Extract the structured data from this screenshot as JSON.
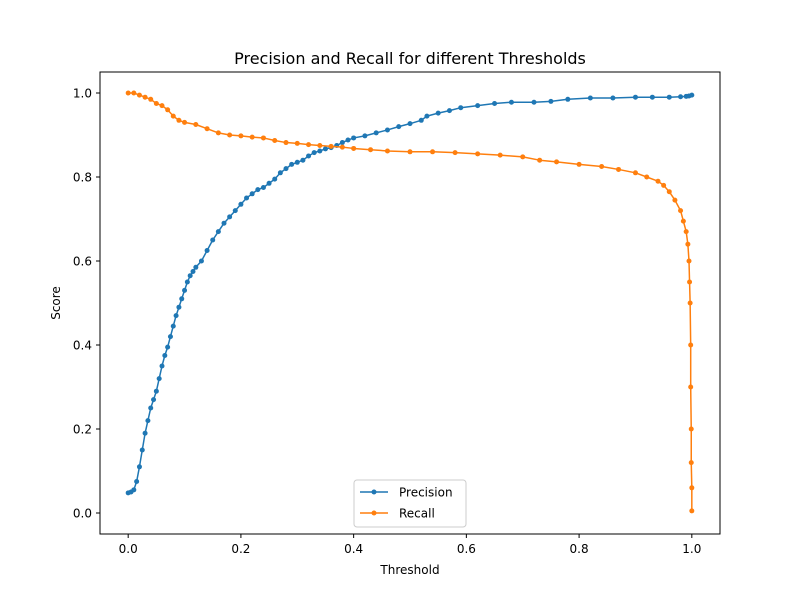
{
  "chart_data": {
    "type": "line",
    "title": "Precision and Recall for different Thresholds",
    "xlabel": "Threshold",
    "ylabel": "Score",
    "xlim": [
      -0.05,
      1.05
    ],
    "ylim": [
      -0.05,
      1.05
    ],
    "xticks": [
      "0.0",
      "0.2",
      "0.4",
      "0.6",
      "0.8",
      "1.0"
    ],
    "xtick_values": [
      0.0,
      0.2,
      0.4,
      0.6,
      0.8,
      1.0
    ],
    "yticks": [
      "0.0",
      "0.2",
      "0.4",
      "0.6",
      "0.8",
      "1.0"
    ],
    "ytick_values": [
      0.0,
      0.2,
      0.4,
      0.6,
      0.8,
      1.0
    ],
    "grid": false,
    "legend_position": "lower-center",
    "markers": true,
    "series": [
      {
        "name": "Precision",
        "color": "#1f77b4",
        "points": [
          [
            0.0,
            0.048
          ],
          [
            0.005,
            0.05
          ],
          [
            0.01,
            0.055
          ],
          [
            0.015,
            0.075
          ],
          [
            0.02,
            0.11
          ],
          [
            0.025,
            0.15
          ],
          [
            0.03,
            0.19
          ],
          [
            0.035,
            0.22
          ],
          [
            0.04,
            0.25
          ],
          [
            0.045,
            0.27
          ],
          [
            0.05,
            0.29
          ],
          [
            0.055,
            0.32
          ],
          [
            0.06,
            0.35
          ],
          [
            0.065,
            0.375
          ],
          [
            0.07,
            0.395
          ],
          [
            0.075,
            0.42
          ],
          [
            0.08,
            0.445
          ],
          [
            0.085,
            0.47
          ],
          [
            0.09,
            0.49
          ],
          [
            0.095,
            0.51
          ],
          [
            0.1,
            0.53
          ],
          [
            0.105,
            0.55
          ],
          [
            0.11,
            0.565
          ],
          [
            0.115,
            0.575
          ],
          [
            0.12,
            0.585
          ],
          [
            0.13,
            0.6
          ],
          [
            0.14,
            0.625
          ],
          [
            0.15,
            0.65
          ],
          [
            0.16,
            0.67
          ],
          [
            0.17,
            0.69
          ],
          [
            0.18,
            0.705
          ],
          [
            0.19,
            0.72
          ],
          [
            0.2,
            0.735
          ],
          [
            0.21,
            0.75
          ],
          [
            0.22,
            0.76
          ],
          [
            0.23,
            0.77
          ],
          [
            0.24,
            0.775
          ],
          [
            0.25,
            0.785
          ],
          [
            0.26,
            0.795
          ],
          [
            0.27,
            0.81
          ],
          [
            0.28,
            0.82
          ],
          [
            0.29,
            0.83
          ],
          [
            0.3,
            0.835
          ],
          [
            0.31,
            0.84
          ],
          [
            0.32,
            0.85
          ],
          [
            0.33,
            0.858
          ],
          [
            0.34,
            0.862
          ],
          [
            0.35,
            0.867
          ],
          [
            0.36,
            0.87
          ],
          [
            0.37,
            0.875
          ],
          [
            0.38,
            0.882
          ],
          [
            0.39,
            0.888
          ],
          [
            0.4,
            0.893
          ],
          [
            0.42,
            0.898
          ],
          [
            0.44,
            0.905
          ],
          [
            0.46,
            0.912
          ],
          [
            0.48,
            0.92
          ],
          [
            0.5,
            0.927
          ],
          [
            0.52,
            0.935
          ],
          [
            0.53,
            0.945
          ],
          [
            0.55,
            0.952
          ],
          [
            0.57,
            0.958
          ],
          [
            0.59,
            0.965
          ],
          [
            0.62,
            0.97
          ],
          [
            0.65,
            0.975
          ],
          [
            0.68,
            0.978
          ],
          [
            0.72,
            0.978
          ],
          [
            0.75,
            0.98
          ],
          [
            0.78,
            0.985
          ],
          [
            0.82,
            0.988
          ],
          [
            0.86,
            0.988
          ],
          [
            0.9,
            0.99
          ],
          [
            0.93,
            0.99
          ],
          [
            0.96,
            0.99
          ],
          [
            0.98,
            0.991
          ],
          [
            0.99,
            0.992
          ],
          [
            0.995,
            0.993
          ],
          [
            1.0,
            0.995
          ]
        ]
      },
      {
        "name": "Recall",
        "color": "#ff7f0e",
        "points": [
          [
            0.0,
            1.0
          ],
          [
            0.01,
            1.0
          ],
          [
            0.02,
            0.995
          ],
          [
            0.03,
            0.99
          ],
          [
            0.04,
            0.985
          ],
          [
            0.05,
            0.975
          ],
          [
            0.06,
            0.97
          ],
          [
            0.07,
            0.96
          ],
          [
            0.08,
            0.945
          ],
          [
            0.09,
            0.935
          ],
          [
            0.1,
            0.93
          ],
          [
            0.12,
            0.925
          ],
          [
            0.14,
            0.915
          ],
          [
            0.16,
            0.905
          ],
          [
            0.18,
            0.9
          ],
          [
            0.2,
            0.898
          ],
          [
            0.22,
            0.895
          ],
          [
            0.24,
            0.893
          ],
          [
            0.26,
            0.887
          ],
          [
            0.28,
            0.882
          ],
          [
            0.3,
            0.88
          ],
          [
            0.32,
            0.877
          ],
          [
            0.34,
            0.875
          ],
          [
            0.36,
            0.873
          ],
          [
            0.38,
            0.871
          ],
          [
            0.4,
            0.868
          ],
          [
            0.43,
            0.865
          ],
          [
            0.46,
            0.862
          ],
          [
            0.5,
            0.86
          ],
          [
            0.54,
            0.86
          ],
          [
            0.58,
            0.858
          ],
          [
            0.62,
            0.855
          ],
          [
            0.66,
            0.852
          ],
          [
            0.7,
            0.848
          ],
          [
            0.73,
            0.84
          ],
          [
            0.76,
            0.836
          ],
          [
            0.8,
            0.83
          ],
          [
            0.84,
            0.825
          ],
          [
            0.87,
            0.818
          ],
          [
            0.9,
            0.81
          ],
          [
            0.92,
            0.8
          ],
          [
            0.94,
            0.79
          ],
          [
            0.95,
            0.78
          ],
          [
            0.96,
            0.765
          ],
          [
            0.97,
            0.745
          ],
          [
            0.98,
            0.72
          ],
          [
            0.985,
            0.695
          ],
          [
            0.99,
            0.67
          ],
          [
            0.993,
            0.64
          ],
          [
            0.995,
            0.6
          ],
          [
            0.996,
            0.55
          ],
          [
            0.997,
            0.5
          ],
          [
            0.998,
            0.4
          ],
          [
            0.998,
            0.3
          ],
          [
            0.999,
            0.2
          ],
          [
            0.999,
            0.12
          ],
          [
            1.0,
            0.06
          ],
          [
            1.0,
            0.005
          ]
        ]
      }
    ]
  }
}
